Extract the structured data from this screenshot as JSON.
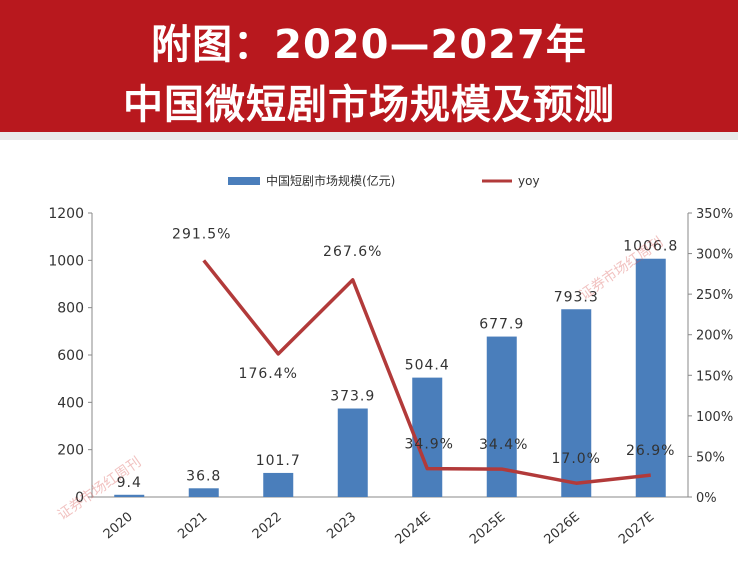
{
  "header": {
    "line1": "附图：2020—2027年",
    "line2": "中国微短剧市场规模及预测"
  },
  "watermark": "证券市场红周刊",
  "colors": {
    "bar": "#4a7ebb",
    "line": "#b23a3a",
    "banner": "#b8181e",
    "axis_text": "#333333"
  },
  "chart_data": {
    "type": "bar",
    "title": "",
    "categories": [
      "2020",
      "2021",
      "2022",
      "2023",
      "2024E",
      "2025E",
      "2026E",
      "2027E"
    ],
    "series": [
      {
        "name": "中国短剧市场规模(亿元)",
        "type": "bar",
        "axis": "left",
        "values": [
          9.4,
          36.8,
          101.7,
          373.9,
          504.4,
          677.9,
          793.3,
          1006.8
        ],
        "labels": [
          "9.4",
          "36.8",
          "101.7",
          "373.9",
          "504.4",
          "677.9",
          "793.3",
          "1006.8"
        ]
      },
      {
        "name": "yoy",
        "type": "line",
        "axis": "right",
        "values": [
          null,
          291.5,
          176.4,
          267.6,
          34.9,
          34.4,
          17.0,
          26.9
        ],
        "labels": [
          "",
          "291.5%",
          "176.4%",
          "267.6%",
          "34.9%",
          "34.4%",
          "17.0%",
          "26.9%"
        ]
      }
    ],
    "left_axis": {
      "ylim": [
        0,
        1200
      ],
      "ticks": [
        "0",
        "200",
        "400",
        "600",
        "800",
        "1000",
        "1200"
      ]
    },
    "right_axis": {
      "ylim": [
        0,
        350
      ],
      "ticks": [
        "0%",
        "50%",
        "100%",
        "150%",
        "200%",
        "250%",
        "300%",
        "350%"
      ]
    },
    "legend": {
      "position": "top",
      "bar_label": "中国短剧市场规模(亿元)",
      "line_label": "yoy"
    }
  }
}
